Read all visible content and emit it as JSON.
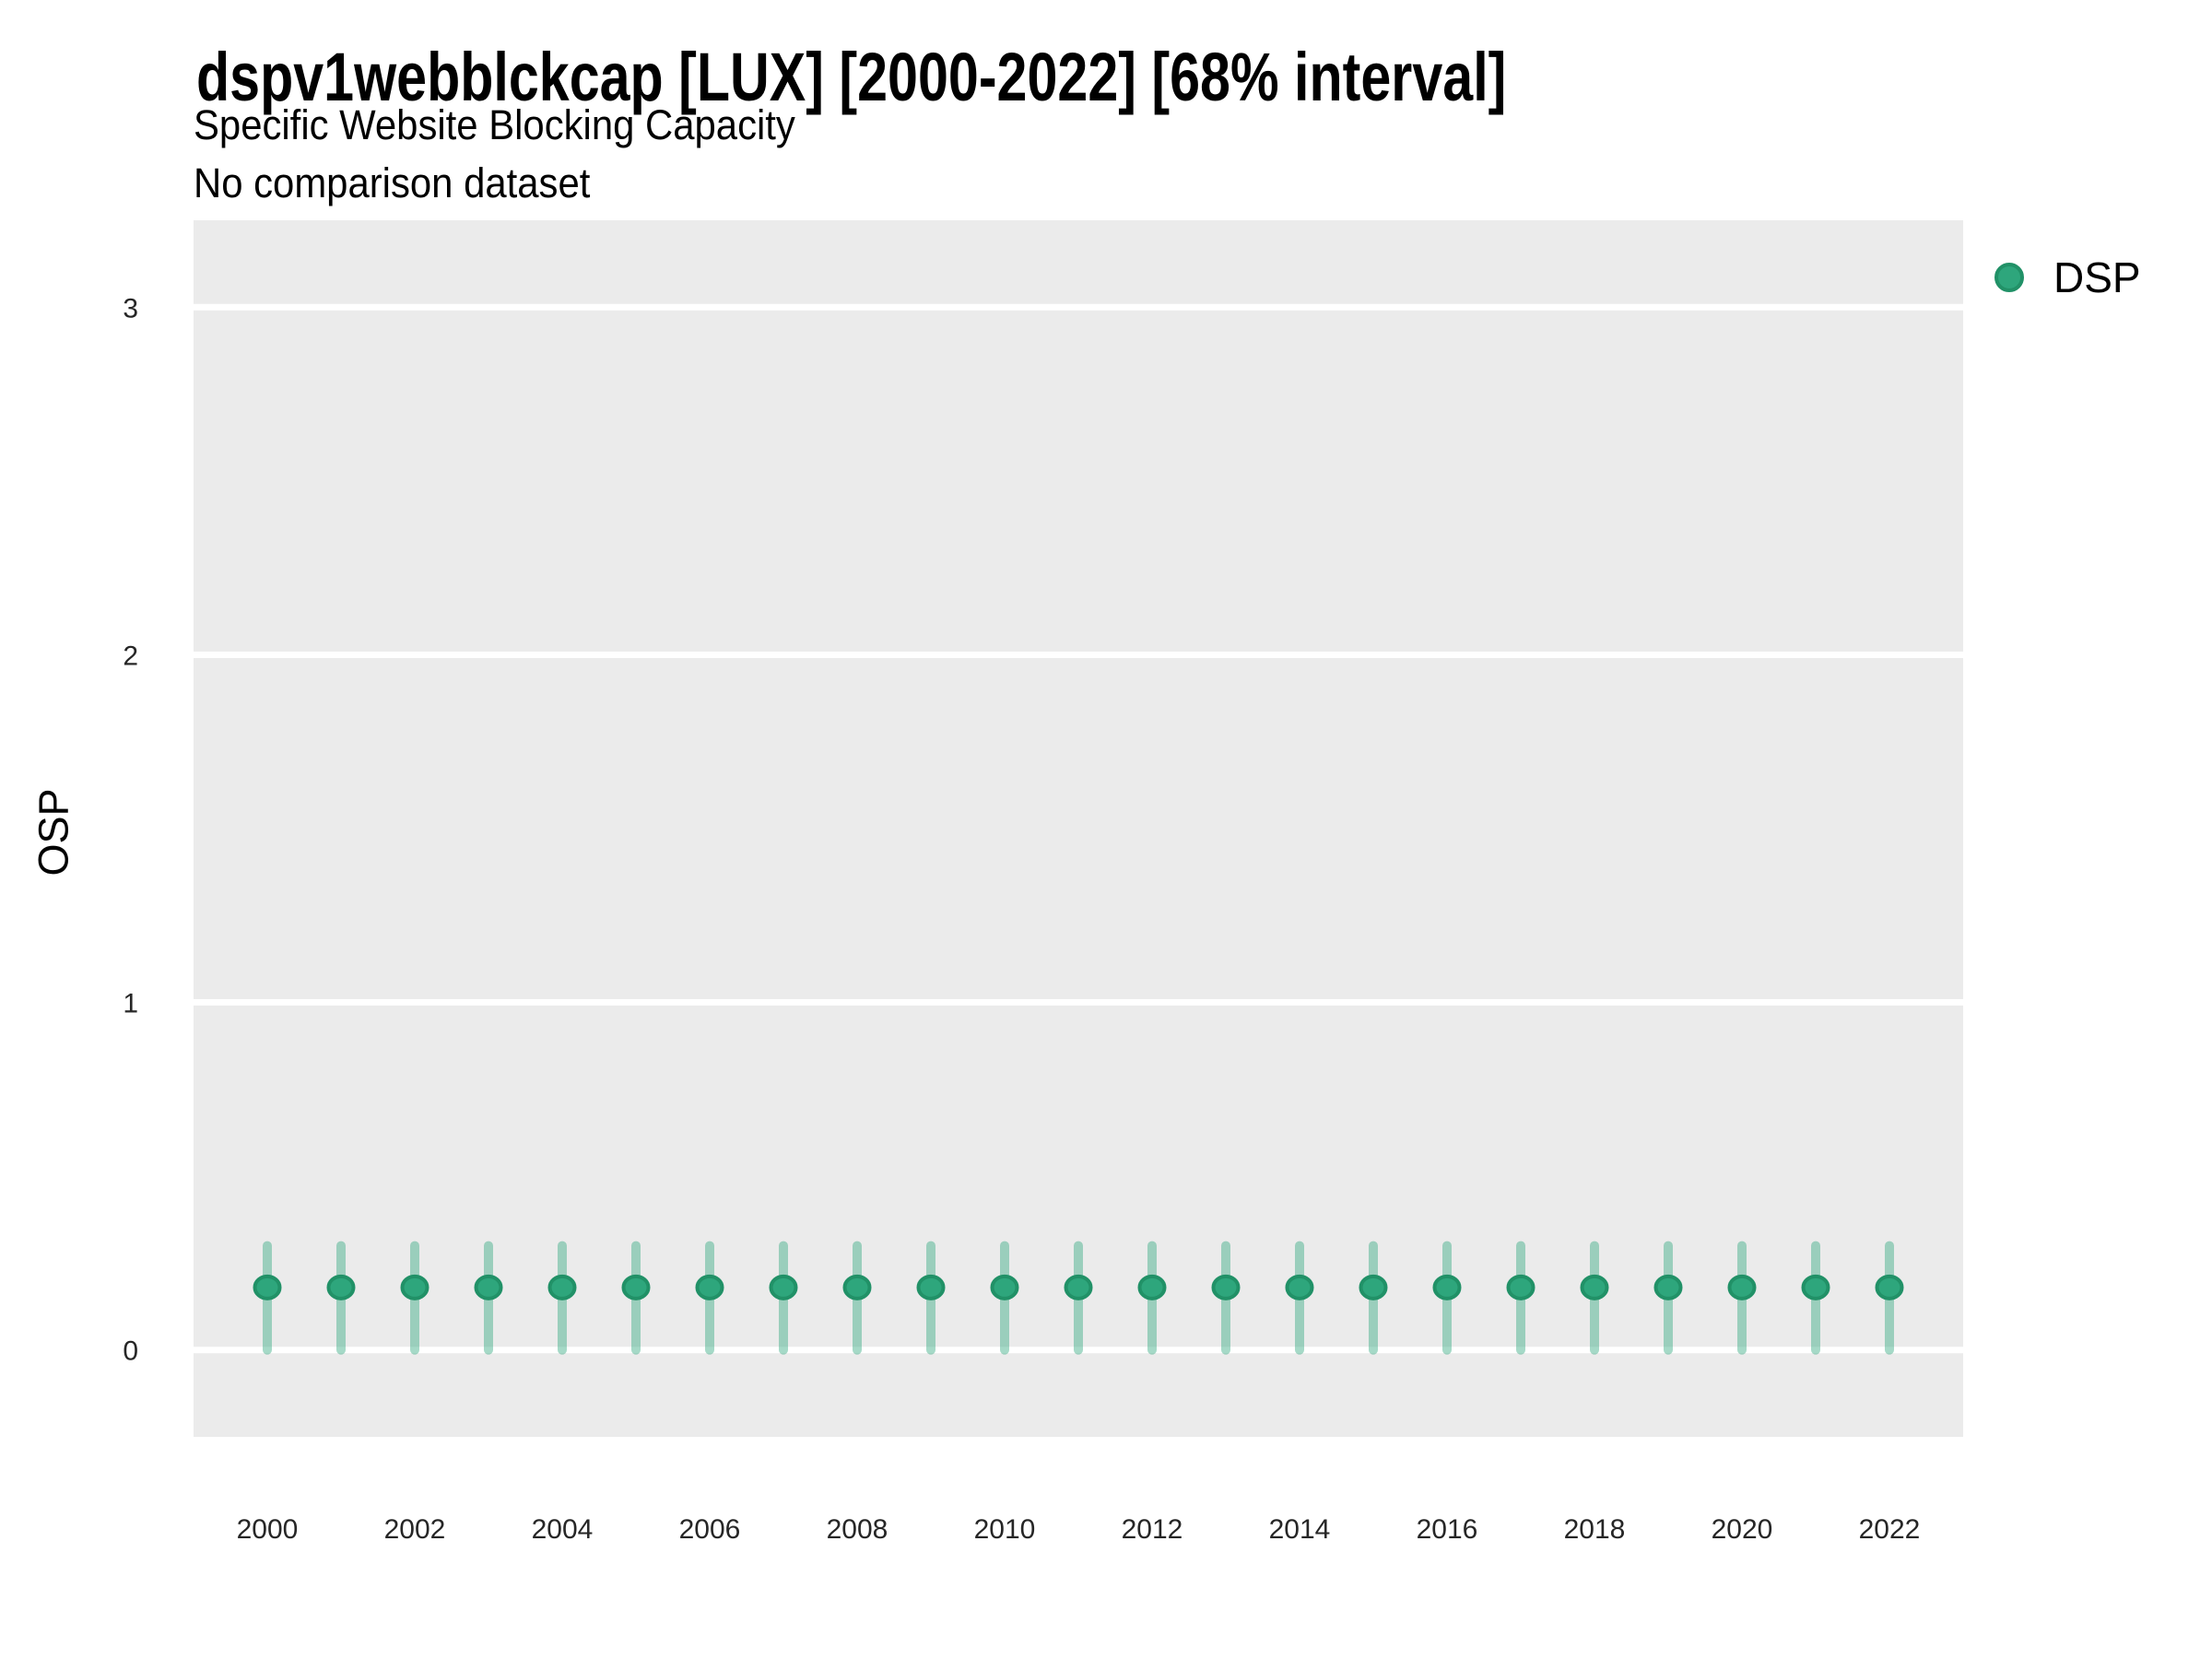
{
  "chart_data": {
    "type": "scatter",
    "title": "dspv1webblckcap [LUX] [2000-2022] [68% interval]",
    "subtitle": "Specific Website Blocking Capacity",
    "note": "No comparison dataset",
    "xlabel": "",
    "ylabel": "OSP",
    "interval_level": "68%",
    "x": [
      2000,
      2001,
      2002,
      2003,
      2004,
      2005,
      2006,
      2007,
      2008,
      2009,
      2010,
      2011,
      2012,
      2013,
      2014,
      2015,
      2016,
      2017,
      2018,
      2019,
      2020,
      2021,
      2022
    ],
    "series": [
      {
        "name": "DSP",
        "point_estimates": [
          0.18,
          0.18,
          0.18,
          0.18,
          0.18,
          0.18,
          0.18,
          0.18,
          0.18,
          0.18,
          0.18,
          0.18,
          0.18,
          0.18,
          0.18,
          0.18,
          0.18,
          0.18,
          0.18,
          0.18,
          0.18,
          0.18,
          0.18
        ],
        "interval_low": [
          0.0,
          0.0,
          0.0,
          0.0,
          0.0,
          0.0,
          0.0,
          0.0,
          0.0,
          0.0,
          0.0,
          0.0,
          0.0,
          0.0,
          0.0,
          0.0,
          0.0,
          0.0,
          0.0,
          0.0,
          0.0,
          0.0,
          0.0
        ],
        "interval_high": [
          0.3,
          0.3,
          0.3,
          0.3,
          0.3,
          0.3,
          0.3,
          0.3,
          0.3,
          0.3,
          0.3,
          0.3,
          0.3,
          0.3,
          0.3,
          0.3,
          0.3,
          0.3,
          0.3,
          0.3,
          0.3,
          0.3,
          0.3
        ]
      }
    ],
    "xticks": [
      2000,
      2002,
      2004,
      2006,
      2008,
      2010,
      2012,
      2014,
      2016,
      2018,
      2020,
      2022
    ],
    "yticks": [
      0,
      1,
      2,
      3
    ],
    "ylim": [
      -0.25,
      3.25
    ],
    "grid": "horizontal major gridlines only, white on grey panel",
    "legend_position": "right-top"
  },
  "colors": {
    "panel_background": "#EBEBEB",
    "gridline": "#FFFFFF",
    "point_fill": "#2EA67C",
    "point_stroke": "#219167",
    "interval_bar": "rgba(46,168,125,0.43)",
    "title_text": "#000000",
    "axis_text": "#262626"
  }
}
